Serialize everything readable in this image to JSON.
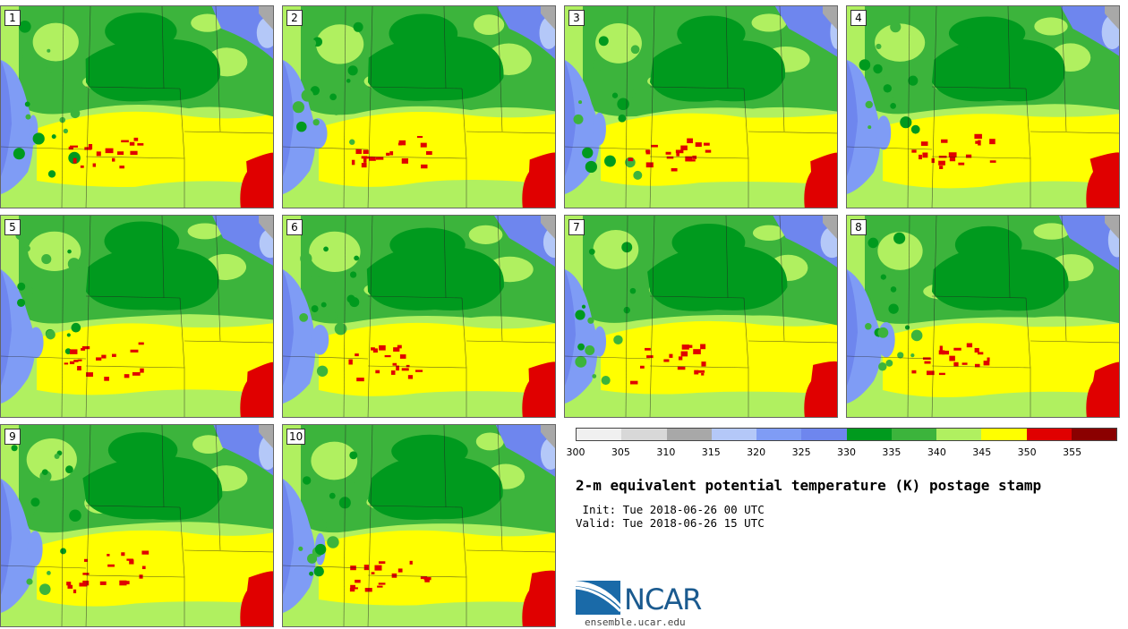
{
  "panels": [
    {
      "label": "1"
    },
    {
      "label": "2"
    },
    {
      "label": "3"
    },
    {
      "label": "4"
    },
    {
      "label": "5"
    },
    {
      "label": "6"
    },
    {
      "label": "7"
    },
    {
      "label": "8"
    },
    {
      "label": "9"
    },
    {
      "label": "10"
    }
  ],
  "colorbar": {
    "colors": [
      "#f0f0f0",
      "#d8d8d8",
      "#a8a8a8",
      "#b4c8f8",
      "#7f9cf5",
      "#6e86ee",
      "#009a1e",
      "#3cb43c",
      "#b0f060",
      "#ffff00",
      "#e00000",
      "#8b0000"
    ],
    "ticks": [
      "300",
      "305",
      "310",
      "315",
      "320",
      "325",
      "330",
      "335",
      "340",
      "345",
      "350",
      "355"
    ]
  },
  "title": "2-m equivalent potential temperature (K) postage stamp",
  "init": " Init: Tue 2018-06-26 00 UTC",
  "valid": "Valid: Tue 2018-06-26 15 UTC",
  "logo": {
    "name": "NCAR",
    "url": "ensemble.ucar.edu"
  }
}
